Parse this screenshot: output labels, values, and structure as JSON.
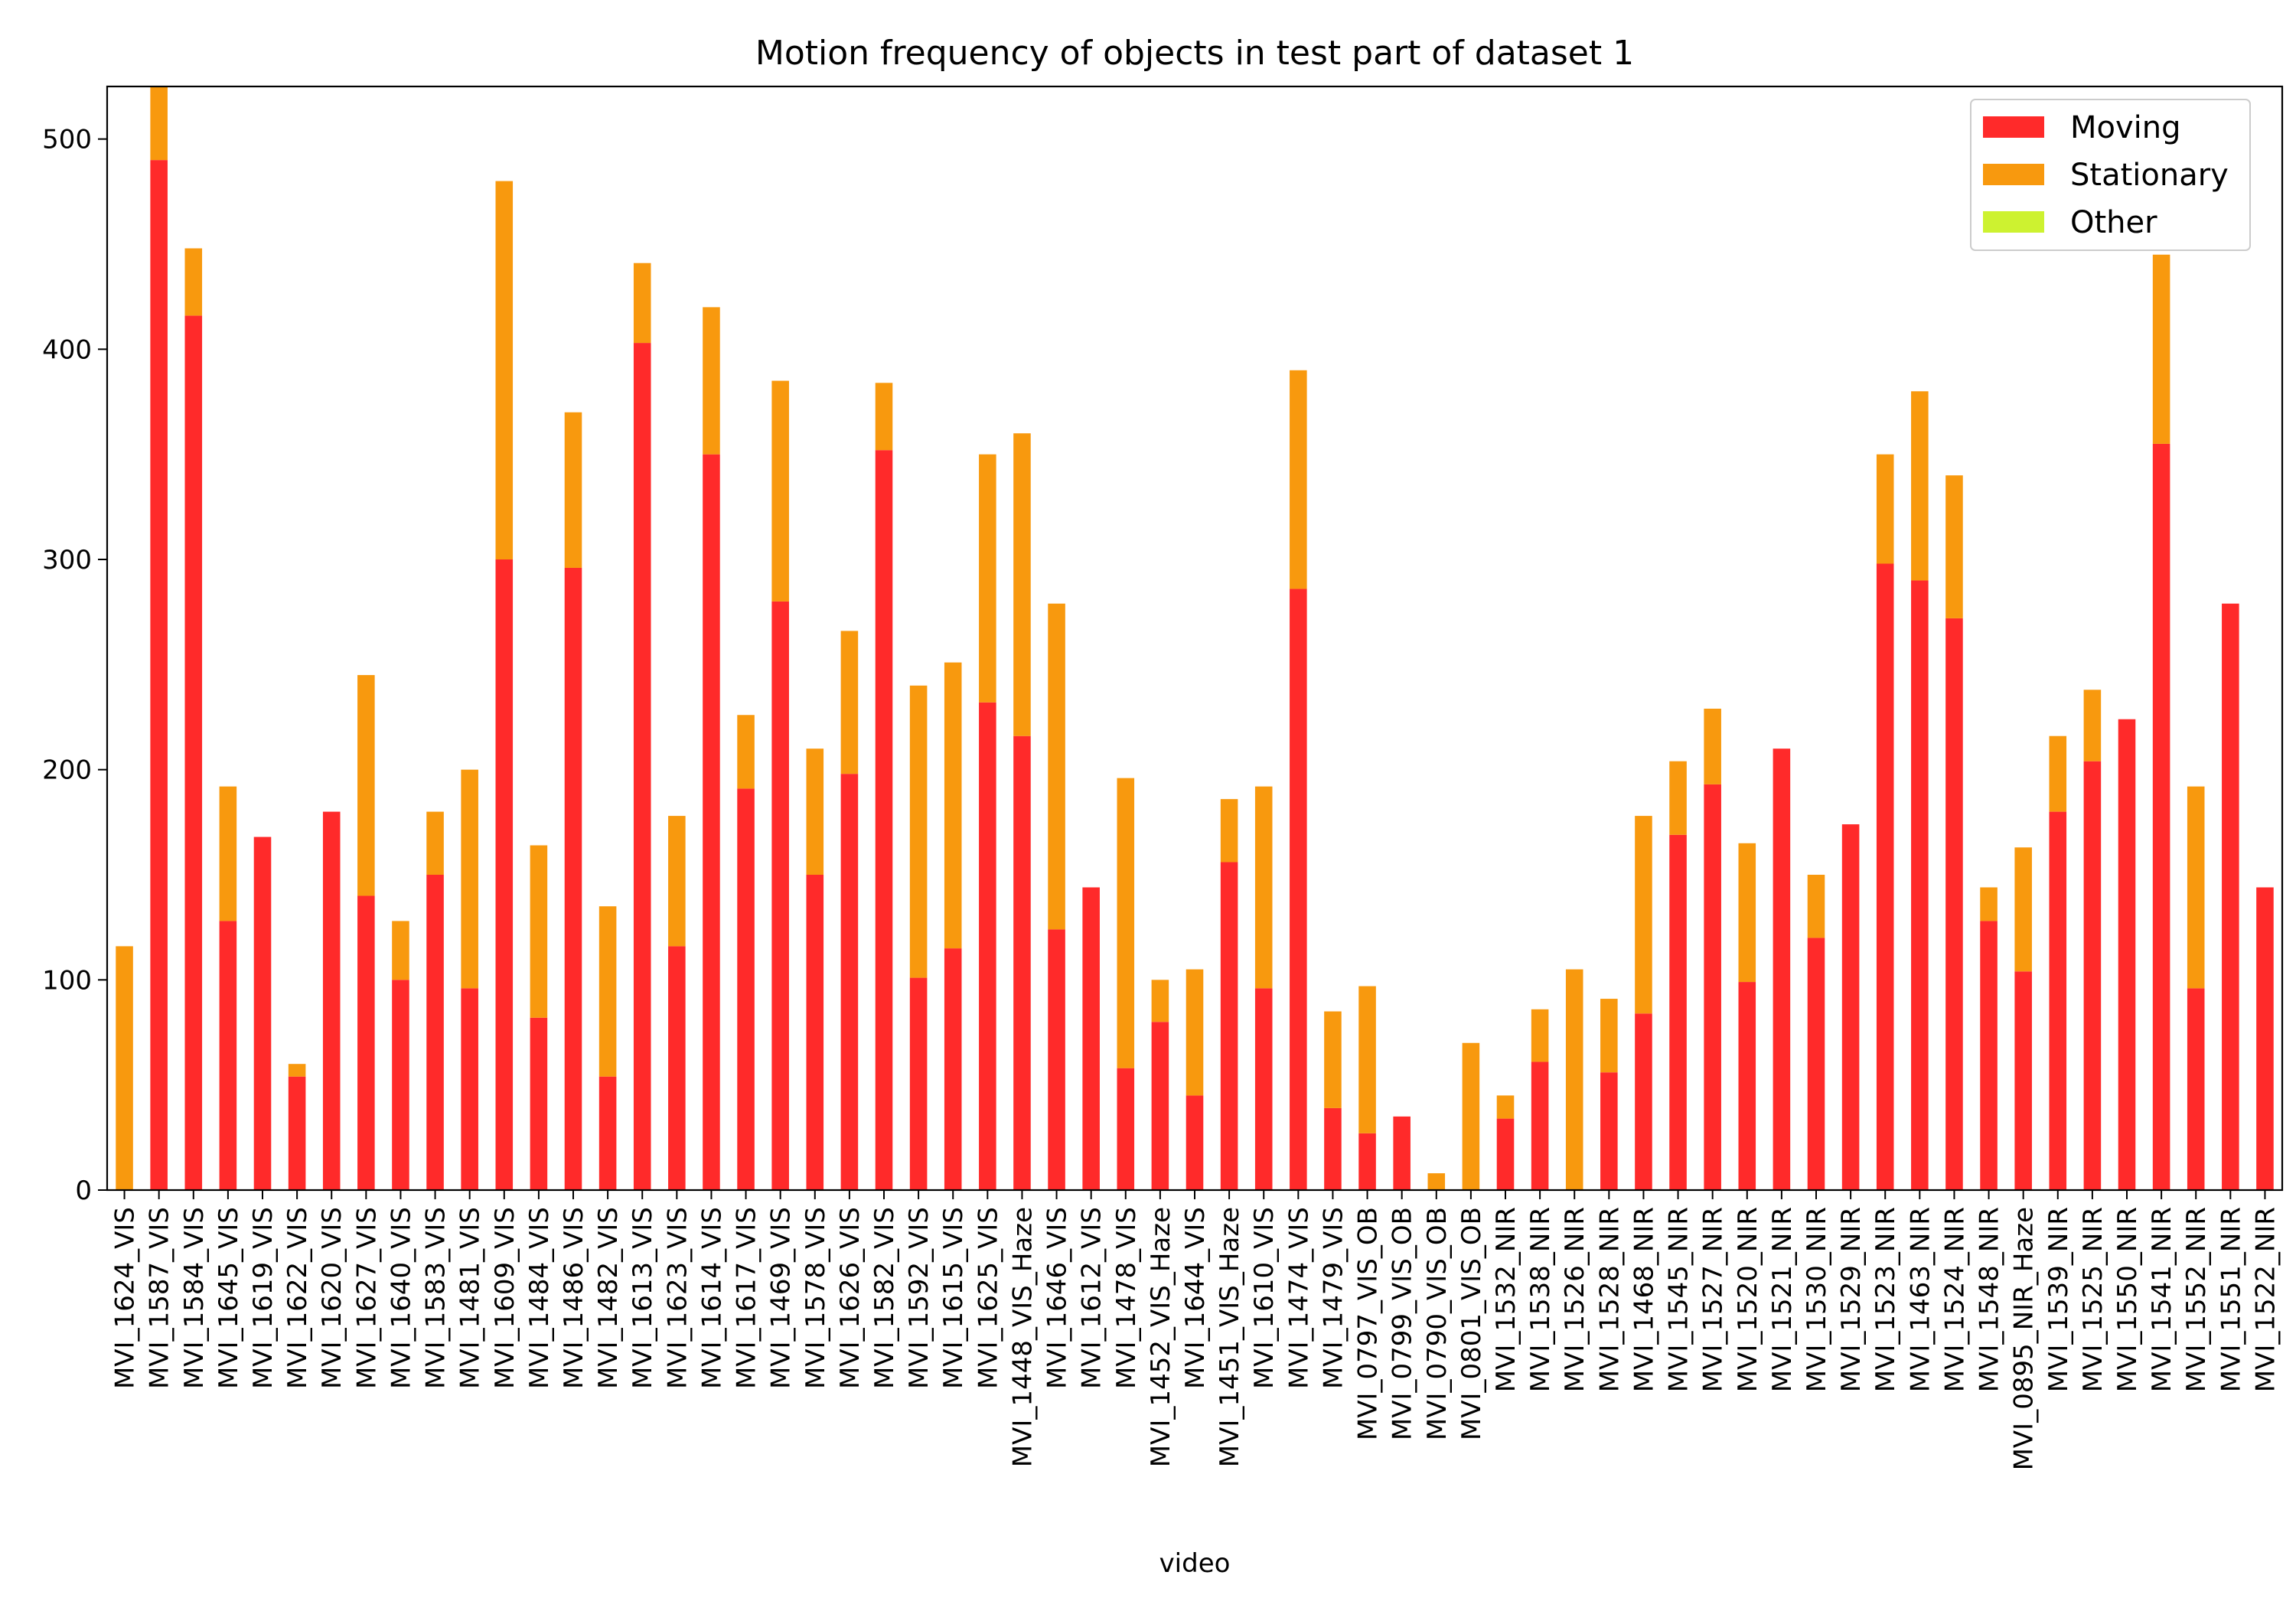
{
  "chart_data": {
    "type": "bar",
    "stacked": true,
    "title": "Motion frequency of objects in test part of dataset 1",
    "xlabel": "video",
    "ylabel": "",
    "ylim": [
      0,
      525
    ],
    "yticks": [
      0,
      100,
      200,
      300,
      400,
      500
    ],
    "grid": false,
    "legend_position": "top-right",
    "categories": [
      "MVI_1624_VIS",
      "MVI_1587_VIS",
      "MVI_1584_VIS",
      "MVI_1645_VIS",
      "MVI_1619_VIS",
      "MVI_1622_VIS",
      "MVI_1620_VIS",
      "MVI_1627_VIS",
      "MVI_1640_VIS",
      "MVI_1583_VIS",
      "MVI_1481_VIS",
      "MVI_1609_VIS",
      "MVI_1484_VIS",
      "MVI_1486_VIS",
      "MVI_1482_VIS",
      "MVI_1613_VIS",
      "MVI_1623_VIS",
      "MVI_1614_VIS",
      "MVI_1617_VIS",
      "MVI_1469_VIS",
      "MVI_1578_VIS",
      "MVI_1626_VIS",
      "MVI_1582_VIS",
      "MVI_1592_VIS",
      "MVI_1615_VIS",
      "MVI_1625_VIS",
      "MVI_1448_VIS_Haze",
      "MVI_1646_VIS",
      "MVI_1612_VIS",
      "MVI_1478_VIS",
      "MVI_1452_VIS_Haze",
      "MVI_1644_VIS",
      "MVI_1451_VIS_Haze",
      "MVI_1610_VIS",
      "MVI_1474_VIS",
      "MVI_1479_VIS",
      "MVI_0797_VIS_OB",
      "MVI_0799_VIS_OB",
      "MVI_0790_VIS_OB",
      "MVI_0801_VIS_OB",
      "MVI_1532_NIR",
      "MVI_1538_NIR",
      "MVI_1526_NIR",
      "MVI_1528_NIR",
      "MVI_1468_NIR",
      "MVI_1545_NIR",
      "MVI_1527_NIR",
      "MVI_1520_NIR",
      "MVI_1521_NIR",
      "MVI_1530_NIR",
      "MVI_1529_NIR",
      "MVI_1523_NIR",
      "MVI_1463_NIR",
      "MVI_1524_NIR",
      "MVI_1548_NIR",
      "MVI_0895_NIR_Haze",
      "MVI_1539_NIR",
      "MVI_1525_NIR",
      "MVI_1550_NIR",
      "MVI_1541_NIR",
      "MVI_1552_NIR",
      "MVI_1551_NIR",
      "MVI_1522_NIR"
    ],
    "series": [
      {
        "name": "Moving",
        "color": "#ff2a2a",
        "values": [
          0,
          490,
          416,
          128,
          168,
          54,
          180,
          140,
          100,
          150,
          96,
          300,
          82,
          296,
          54,
          403,
          116,
          350,
          191,
          280,
          150,
          198,
          352,
          101,
          115,
          232,
          216,
          124,
          144,
          58,
          80,
          45,
          156,
          96,
          286,
          39,
          27,
          35,
          0,
          0,
          34,
          61,
          0,
          56,
          84,
          169,
          193,
          99,
          210,
          120,
          174,
          298,
          290,
          272,
          128,
          104,
          180,
          204,
          224,
          355,
          96,
          279,
          144
        ]
      },
      {
        "name": "Stationary",
        "color": "#f8990e",
        "values": [
          116,
          40,
          32,
          64,
          0,
          6,
          0,
          105,
          28,
          30,
          104,
          180,
          82,
          74,
          81,
          38,
          62,
          70,
          35,
          105,
          60,
          68,
          32,
          139,
          136,
          118,
          144,
          155,
          0,
          138,
          20,
          60,
          30,
          96,
          104,
          46,
          70,
          0,
          8,
          70,
          11,
          25,
          105,
          35,
          94,
          35,
          36,
          66,
          0,
          30,
          0,
          52,
          90,
          68,
          16,
          59,
          36,
          34,
          0,
          90,
          96,
          0,
          0
        ]
      },
      {
        "name": "Other",
        "color": "#cdf230",
        "values": [
          0,
          0,
          0,
          0,
          0,
          0,
          0,
          0,
          0,
          0,
          0,
          0,
          0,
          0,
          0,
          0,
          0,
          0,
          0,
          0,
          0,
          0,
          0,
          0,
          0,
          0,
          0,
          0,
          0,
          0,
          0,
          0,
          0,
          0,
          0,
          0,
          0,
          0,
          0,
          0,
          0,
          0,
          0,
          0,
          0,
          0,
          0,
          0,
          0,
          0,
          0,
          0,
          0,
          0,
          0,
          0,
          0,
          0,
          0,
          0,
          0,
          0,
          0
        ]
      }
    ]
  }
}
